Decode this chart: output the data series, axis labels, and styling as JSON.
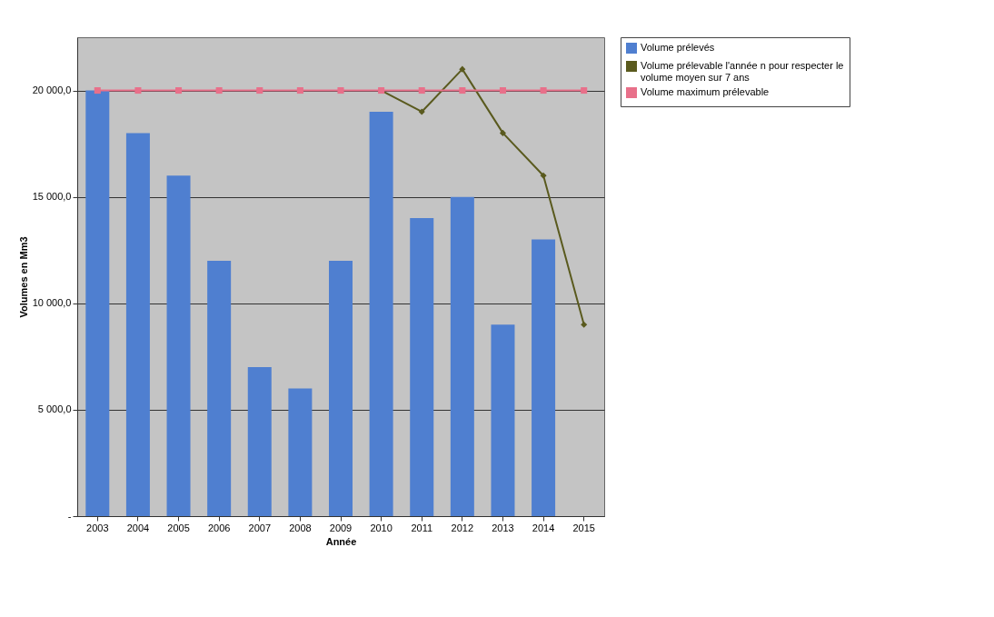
{
  "chart_data": {
    "type": "bar",
    "xlabel": "Année",
    "ylabel": "Volumes en Mm3",
    "categories": [
      "2003",
      "2004",
      "2005",
      "2006",
      "2007",
      "2008",
      "2009",
      "2010",
      "2011",
      "2012",
      "2013",
      "2014",
      "2015"
    ],
    "series": [
      {
        "name": "Volume prélevés",
        "color": "#4f7fd0",
        "values": [
          20000,
          18000,
          16000,
          12000,
          7000,
          6000,
          12000,
          19000,
          14000,
          15000,
          9000,
          13000,
          null
        ]
      },
      {
        "name": "Volume prélevable l'année n pour respecter le volume moyen sur 7 ans",
        "type": "line",
        "color": "#5a5a1e",
        "marker": "diamond",
        "values": [
          null,
          null,
          null,
          null,
          null,
          null,
          null,
          20000,
          19000,
          21000,
          18000,
          16000,
          9000
        ]
      },
      {
        "name": "Volume maximum prélevable",
        "type": "line",
        "color": "#e8708a",
        "marker": "square",
        "values": [
          20000,
          20000,
          20000,
          20000,
          20000,
          20000,
          20000,
          20000,
          20000,
          20000,
          20000,
          20000,
          20000
        ]
      }
    ],
    "ylim": [
      0,
      22500
    ],
    "yticks": [
      {
        "value": 0,
        "label": "-"
      },
      {
        "value": 5000,
        "label": "5 000,0"
      },
      {
        "value": 10000,
        "label": "10 000,0"
      },
      {
        "value": 15000,
        "label": "15 000,0"
      },
      {
        "value": 20000,
        "label": "20 000,0"
      }
    ],
    "grid": "y",
    "legend": "right"
  }
}
